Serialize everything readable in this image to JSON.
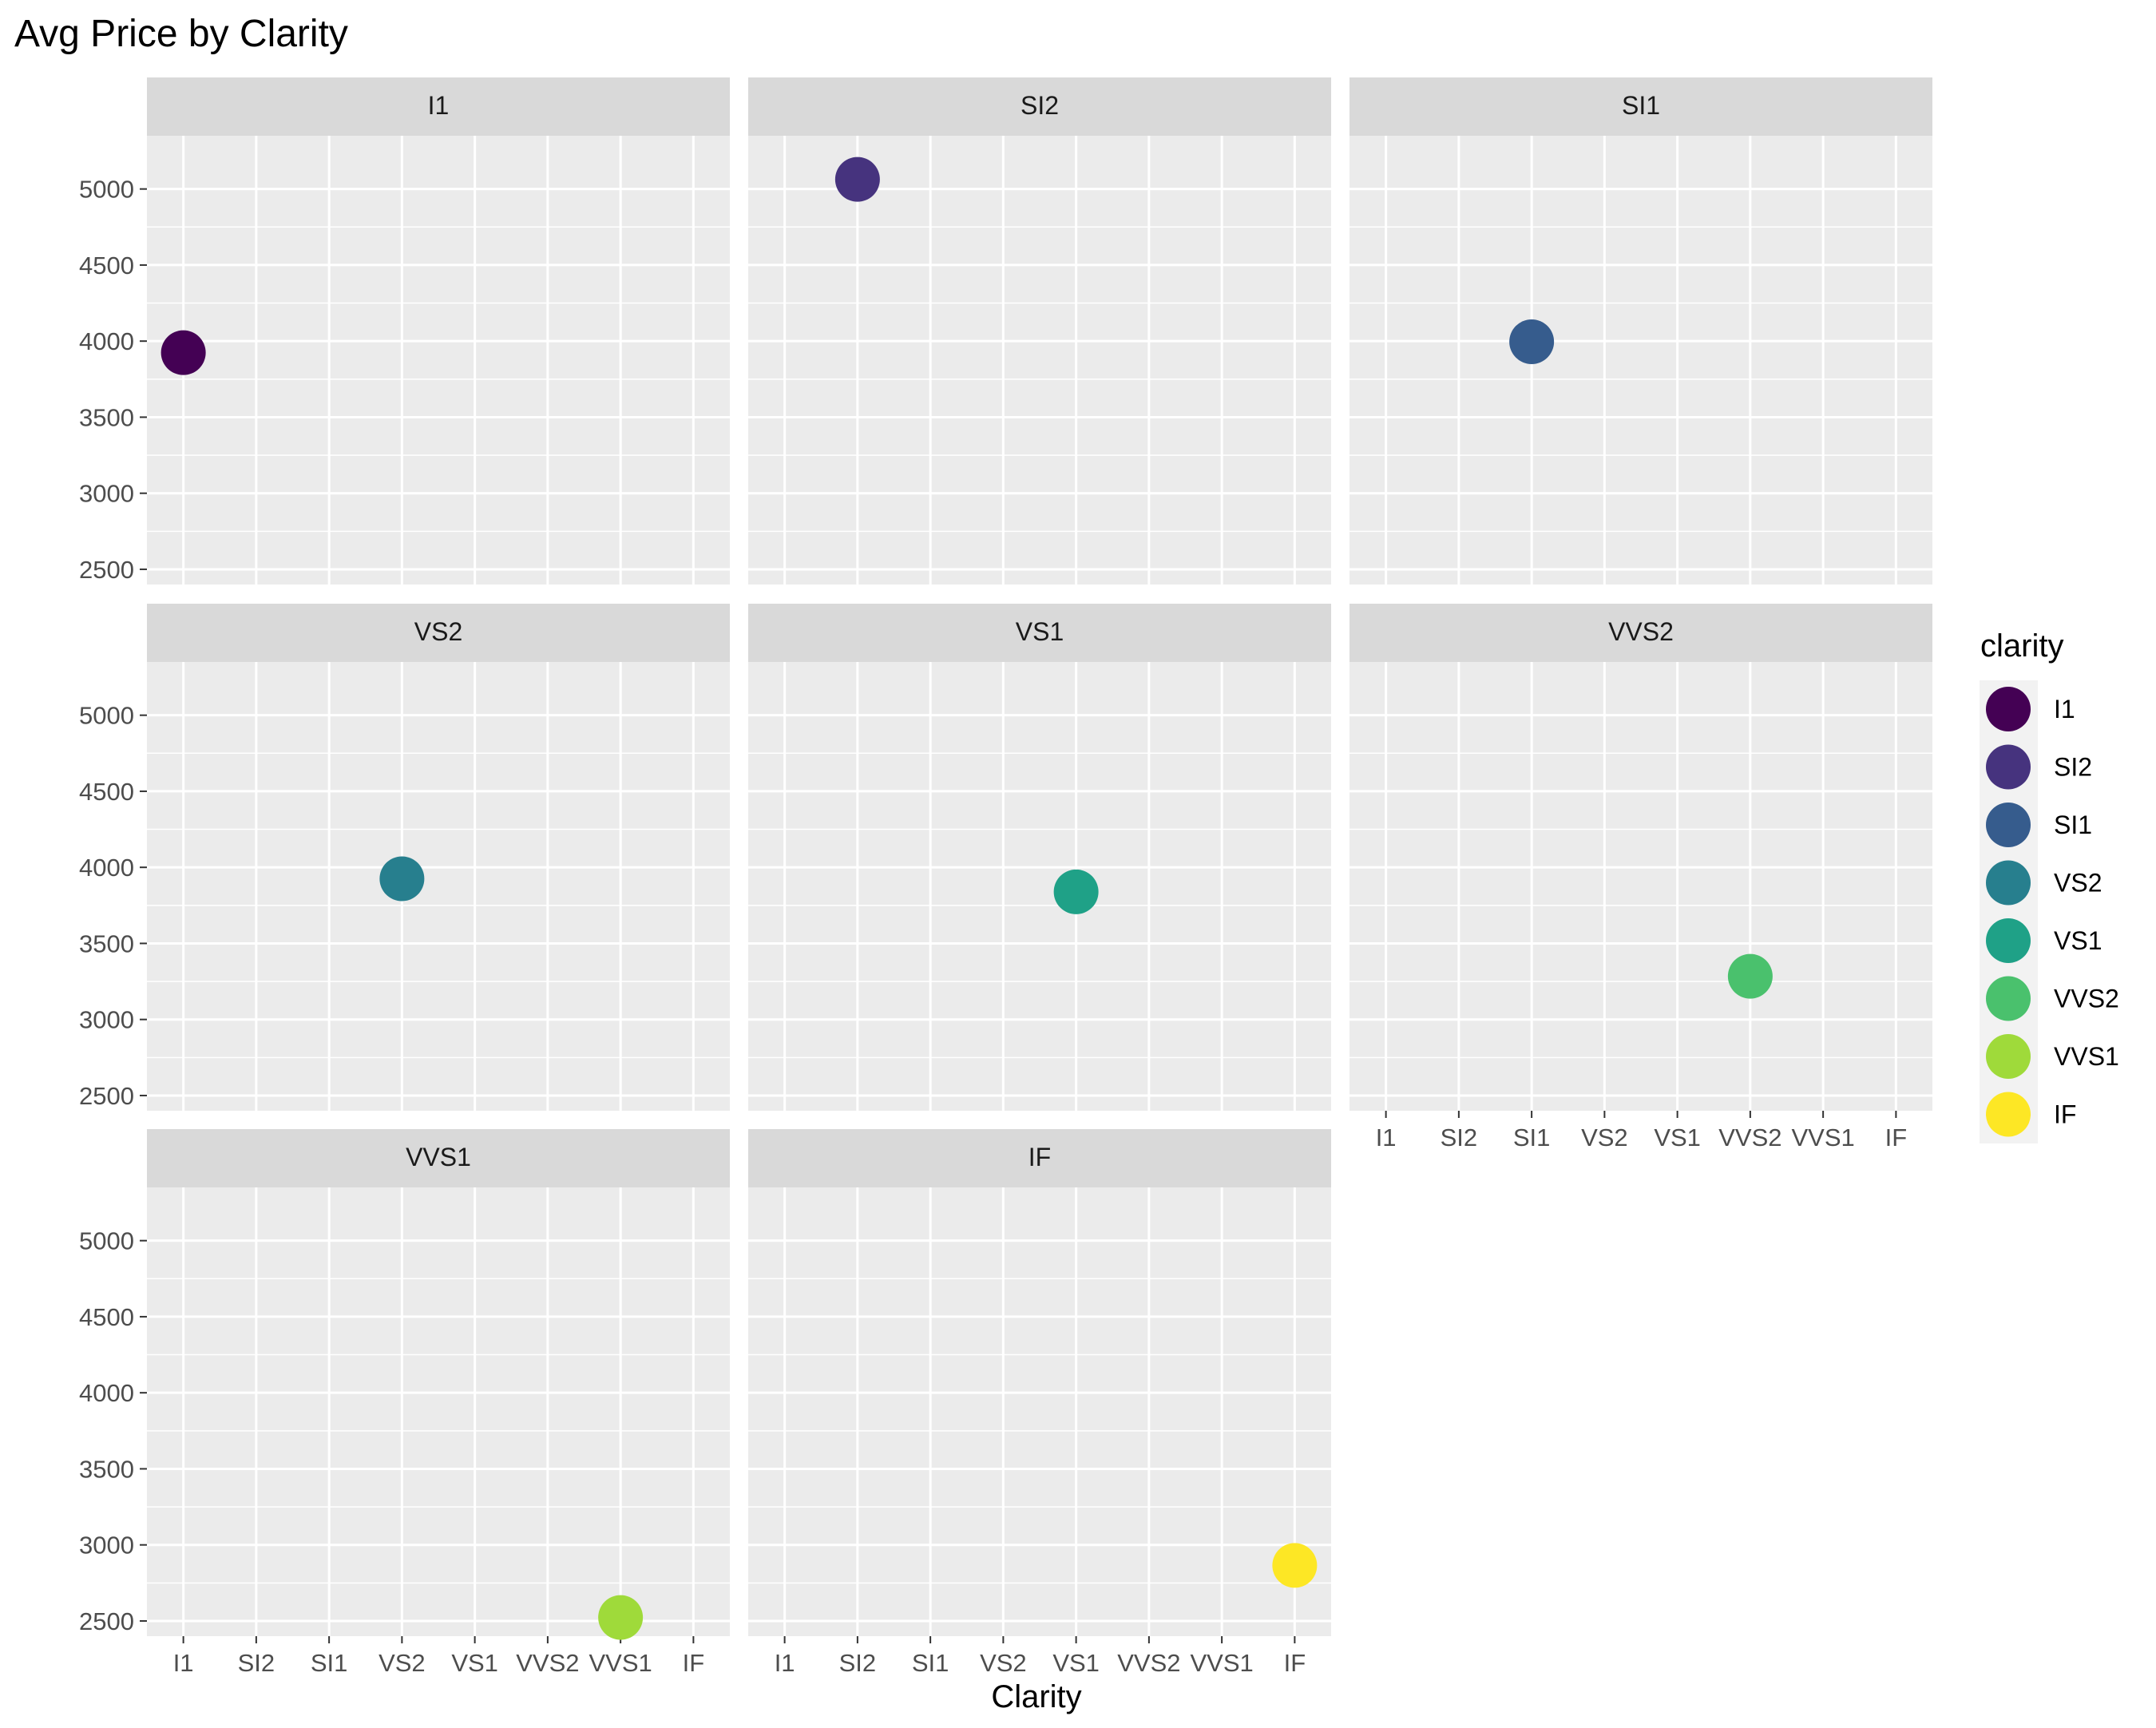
{
  "chart_data": {
    "type": "scatter",
    "title": "Avg Price by Clarity",
    "xlabel": "Clarity",
    "ylabel": "",
    "categories": [
      "I1",
      "SI2",
      "SI1",
      "VS2",
      "VS1",
      "VVS2",
      "VVS1",
      "IF"
    ],
    "y_ticks": [
      2500,
      3000,
      3500,
      4000,
      4500,
      5000
    ],
    "ylim": [
      2400,
      5350
    ],
    "grid": true,
    "facet_by": "clarity",
    "facet_layout": {
      "rows": 3,
      "cols": 3
    },
    "facets": [
      {
        "label": "I1",
        "x": "I1",
        "y": 3924
      },
      {
        "label": "SI2",
        "x": "SI2",
        "y": 5063
      },
      {
        "label": "SI1",
        "x": "SI1",
        "y": 3996
      },
      {
        "label": "VS2",
        "x": "VS2",
        "y": 3925
      },
      {
        "label": "VS1",
        "x": "VS1",
        "y": 3839
      },
      {
        "label": "VVS2",
        "x": "VVS2",
        "y": 3284
      },
      {
        "label": "VVS1",
        "x": "VVS1",
        "y": 2523
      },
      {
        "label": "IF",
        "x": "IF",
        "y": 2865
      }
    ],
    "legend": {
      "title": "clarity",
      "position": "right",
      "entries": [
        {
          "label": "I1",
          "color": "#440154"
        },
        {
          "label": "SI2",
          "color": "#46337E"
        },
        {
          "label": "SI1",
          "color": "#365C8D"
        },
        {
          "label": "VS2",
          "color": "#277F8E"
        },
        {
          "label": "VS1",
          "color": "#1FA187"
        },
        {
          "label": "VVS2",
          "color": "#4AC16D"
        },
        {
          "label": "VVS1",
          "color": "#9FDA3A"
        },
        {
          "label": "IF",
          "color": "#FDE725"
        }
      ]
    }
  },
  "colors": {
    "panel_background": "#EBEBEB",
    "strip_background": "#D9D9D9",
    "grid_line": "#FFFFFF",
    "axis_text": "#4D4D4D",
    "title_text": "#000000"
  }
}
